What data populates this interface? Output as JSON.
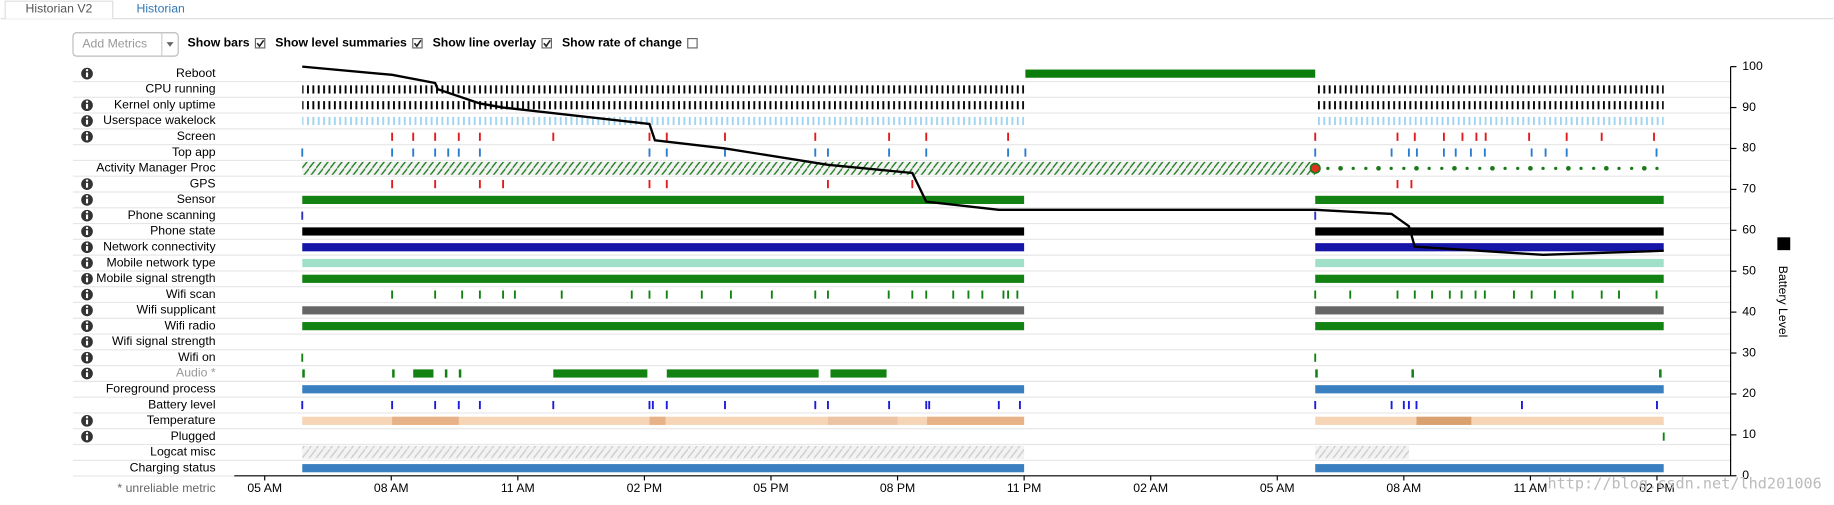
{
  "tabs": [
    {
      "label": "Historian V2",
      "active": true
    },
    {
      "label": "Historian",
      "active": false
    }
  ],
  "controls": {
    "add_metrics": "Add Metrics",
    "checkboxes": [
      {
        "label": "Show bars",
        "checked": true
      },
      {
        "label": "Show level summaries",
        "checked": true
      },
      {
        "label": "Show line overlay",
        "checked": true
      },
      {
        "label": "Show rate of change",
        "checked": false
      }
    ]
  },
  "chart": {
    "xlim": [
      -1,
      36.5
    ],
    "xticks": [
      {
        "value": 0,
        "label": "05 AM"
      },
      {
        "value": 3,
        "label": "08 AM"
      },
      {
        "value": 6,
        "label": "11 AM"
      },
      {
        "value": 9,
        "label": "02 PM"
      },
      {
        "value": 12,
        "label": "05 PM"
      },
      {
        "value": 15,
        "label": "08 PM"
      },
      {
        "value": 18,
        "label": "11 PM"
      },
      {
        "value": 21,
        "label": "02 AM"
      },
      {
        "value": 24,
        "label": "05 AM"
      },
      {
        "value": 27,
        "label": "08 AM"
      },
      {
        "value": 30,
        "label": "11 AM"
      },
      {
        "value": 33,
        "label": "02 PM"
      }
    ],
    "ylim": [
      0,
      100
    ],
    "yticks": [
      0,
      10,
      20,
      30,
      40,
      50,
      60,
      70,
      80,
      90,
      100
    ],
    "y_label": "Battery Level",
    "battery": {
      "color": "#000000",
      "x": [
        0.89,
        3.02,
        4.04,
        4.1,
        5.1,
        5.65,
        9.12,
        9.25,
        10.91,
        13.35,
        15.35,
        15.68,
        17.4,
        24.9,
        26.71,
        27.12,
        27.26,
        30.3,
        33.16
      ],
      "values": [
        100,
        98,
        96,
        94.5,
        91,
        90,
        86,
        82,
        80,
        76,
        74,
        67,
        65,
        65,
        64,
        61,
        56,
        54,
        55
      ]
    },
    "rows": [
      {
        "label": "Reboot",
        "info": true,
        "color": "#0b7d0b",
        "style": "solid",
        "spans": [
          [
            18.03,
            24.9
          ]
        ]
      },
      {
        "label": "CPU running",
        "info": false,
        "color": "#000000",
        "style": "ticks",
        "spans": [
          [
            0.89,
            18.0
          ],
          [
            24.9,
            33.16
          ]
        ]
      },
      {
        "label": "Kernel only uptime",
        "info": true,
        "color": "#000000",
        "style": "ticks",
        "spans": [
          [
            0.89,
            18.0
          ],
          [
            24.9,
            33.16
          ]
        ]
      },
      {
        "label": "Userspace wakelock",
        "info": true,
        "color": "#9fd3ef",
        "style": "ticks",
        "spans": [
          [
            0.89,
            18.0
          ],
          [
            24.9,
            33.16
          ]
        ]
      },
      {
        "label": "Screen",
        "info": true,
        "color": "#e31a1c",
        "events": [
          3.02,
          3.52,
          4.04,
          4.6,
          5.1,
          6.84,
          9.12,
          9.53,
          10.91,
          13.05,
          14.8,
          15.68,
          17.62,
          24.9,
          26.85,
          27.26,
          27.95,
          28.39,
          28.72,
          28.94,
          29.97,
          30.86,
          31.69,
          32.93
        ]
      },
      {
        "label": "Top app",
        "info": false,
        "color": "#2b7bd0",
        "events": [
          0.89,
          3.02,
          3.52,
          4.04,
          4.35,
          4.6,
          5.1,
          9.12,
          9.53,
          10.91,
          13.05,
          13.35,
          14.8,
          15.68,
          17.62,
          18.03,
          24.9,
          26.71,
          27.12,
          27.31,
          27.95,
          28.23,
          28.59,
          28.92,
          30.03,
          30.36,
          30.86,
          32.99
        ]
      },
      {
        "label": "Activity Manager Proc",
        "info": false,
        "color": "#1a7a1a",
        "style": "hatch",
        "spans": [
          [
            0.89,
            24.9
          ]
        ],
        "marker": 24.9,
        "marker_color": "#e03020",
        "dots": [
          25.2,
          25.5,
          25.8,
          26.1,
          26.4,
          26.7,
          27.0,
          27.3,
          27.6,
          27.9,
          28.2,
          28.5,
          28.8,
          29.1,
          29.4,
          29.7,
          30.0,
          30.3,
          30.6,
          30.9,
          31.2,
          31.5,
          31.8,
          32.1,
          32.4,
          32.7,
          33.0
        ]
      },
      {
        "label": "GPS",
        "info": true,
        "color": "#e31a1c",
        "events": [
          3.02,
          4.04,
          5.1,
          5.65,
          9.12,
          9.53,
          13.35,
          15.35,
          26.85,
          27.18
        ]
      },
      {
        "label": "Sensor",
        "info": true,
        "color": "#128212",
        "style": "solid",
        "spans": [
          [
            0.89,
            18.0
          ],
          [
            24.9,
            33.16
          ]
        ]
      },
      {
        "label": "Phone scanning",
        "info": true,
        "color": "#3030c0",
        "events": [
          0.89,
          24.9
        ]
      },
      {
        "label": "Phone state",
        "info": true,
        "color": "#000000",
        "style": "solid",
        "spans": [
          [
            0.89,
            18.0
          ],
          [
            24.9,
            33.16
          ]
        ]
      },
      {
        "label": "Network connectivity",
        "info": true,
        "color": "#1515a8",
        "style": "solid",
        "spans": [
          [
            0.89,
            18.0
          ],
          [
            24.9,
            33.16
          ]
        ]
      },
      {
        "label": "Mobile network type",
        "info": true,
        "color": "#a0e0c8",
        "style": "solid",
        "spans": [
          [
            0.89,
            18.0
          ],
          [
            24.9,
            33.16
          ]
        ]
      },
      {
        "label": "Mobile signal strength",
        "info": true,
        "color": "#128212",
        "style": "solid",
        "spans": [
          [
            0.89,
            18.0
          ],
          [
            24.9,
            33.16
          ]
        ]
      },
      {
        "label": "Wifi scan",
        "info": true,
        "color": "#128212",
        "events": [
          3.02,
          4.04,
          4.68,
          5.1,
          5.65,
          5.93,
          7.04,
          8.7,
          9.12,
          9.53,
          10.36,
          11.05,
          12.02,
          13.05,
          13.35,
          14.79,
          15.35,
          15.68,
          16.32,
          16.68,
          17.01,
          17.51,
          17.62,
          17.84,
          24.9,
          25.73,
          26.85,
          27.26,
          27.67,
          28.09,
          28.37,
          28.7,
          28.92,
          29.61,
          30.03,
          30.58,
          31.0,
          31.69,
          32.1,
          32.99
        ]
      },
      {
        "label": "Wifi supplicant",
        "info": true,
        "color": "#666666",
        "style": "solid",
        "spans": [
          [
            0.89,
            18.0
          ],
          [
            24.9,
            33.16
          ]
        ]
      },
      {
        "label": "Wifi radio",
        "info": true,
        "color": "#128212",
        "style": "solid",
        "spans": [
          [
            0.89,
            18.0
          ],
          [
            24.9,
            33.16
          ]
        ]
      },
      {
        "label": "Wifi signal strength",
        "info": true,
        "color": "#128212"
      },
      {
        "label": "Wifi on",
        "info": true,
        "color": "#128212",
        "events": [
          0.89,
          24.9
        ]
      },
      {
        "label": "Audio *",
        "info": true,
        "color": "#128212",
        "text_color": "#999999",
        "style": "solid",
        "spans": [
          [
            0.89,
            0.95
          ],
          [
            3.02,
            3.08
          ],
          [
            3.52,
            4.0
          ],
          [
            4.27,
            4.33
          ],
          [
            4.6,
            4.66
          ],
          [
            6.84,
            9.07
          ],
          [
            9.53,
            13.13
          ],
          [
            13.41,
            14.74
          ],
          [
            24.9,
            24.96
          ],
          [
            27.18,
            27.24
          ],
          [
            33.05,
            33.11
          ]
        ]
      },
      {
        "label": "Foreground process",
        "info": false,
        "color": "#3a80c0",
        "style": "solid",
        "spans": [
          [
            0.89,
            18.0
          ],
          [
            24.9,
            33.16
          ]
        ]
      },
      {
        "label": "Battery level",
        "info": false,
        "color": "#1a1ae0",
        "events": [
          0.89,
          3.02,
          4.04,
          4.6,
          5.1,
          6.84,
          9.12,
          9.2,
          9.53,
          10.91,
          13.05,
          13.35,
          14.8,
          15.68,
          15.75,
          17.4,
          17.9,
          24.9,
          26.71,
          27.0,
          27.12,
          27.3,
          29.8,
          33.0
        ]
      },
      {
        "label": "Temperature",
        "info": true,
        "color": "#f5d5b5",
        "style": "solid",
        "spans": [
          [
            0.89,
            18.0
          ],
          [
            24.9,
            33.16
          ],
          [
            3.02,
            4.6
          ],
          [
            9.12,
            9.5
          ],
          [
            13.35,
            15.0
          ],
          [
            15.7,
            18.0
          ],
          [
            27.3,
            28.6
          ]
        ],
        "span_colors": [
          "#f5d5b5",
          "#f5d5b5",
          "#e8b288",
          "#e8b288",
          "#ecc4a4",
          "#e8b288",
          "#d9a070"
        ]
      },
      {
        "label": "Plugged",
        "info": true,
        "color": "#128212",
        "events": [
          33.16
        ]
      },
      {
        "label": "Logcat misc",
        "info": false,
        "color": "#cccccc",
        "style": "hatch",
        "spans": [
          [
            0.89,
            18.0
          ],
          [
            24.9,
            27.12
          ]
        ]
      },
      {
        "label": "Charging status",
        "info": false,
        "color": "#3a80c0",
        "style": "solid",
        "spans": [
          [
            0.89,
            18.0
          ],
          [
            24.9,
            33.16
          ]
        ]
      }
    ],
    "footnote": "* unreliable metric",
    "watermark": "http://blog.csdn.net/lhd201006"
  }
}
